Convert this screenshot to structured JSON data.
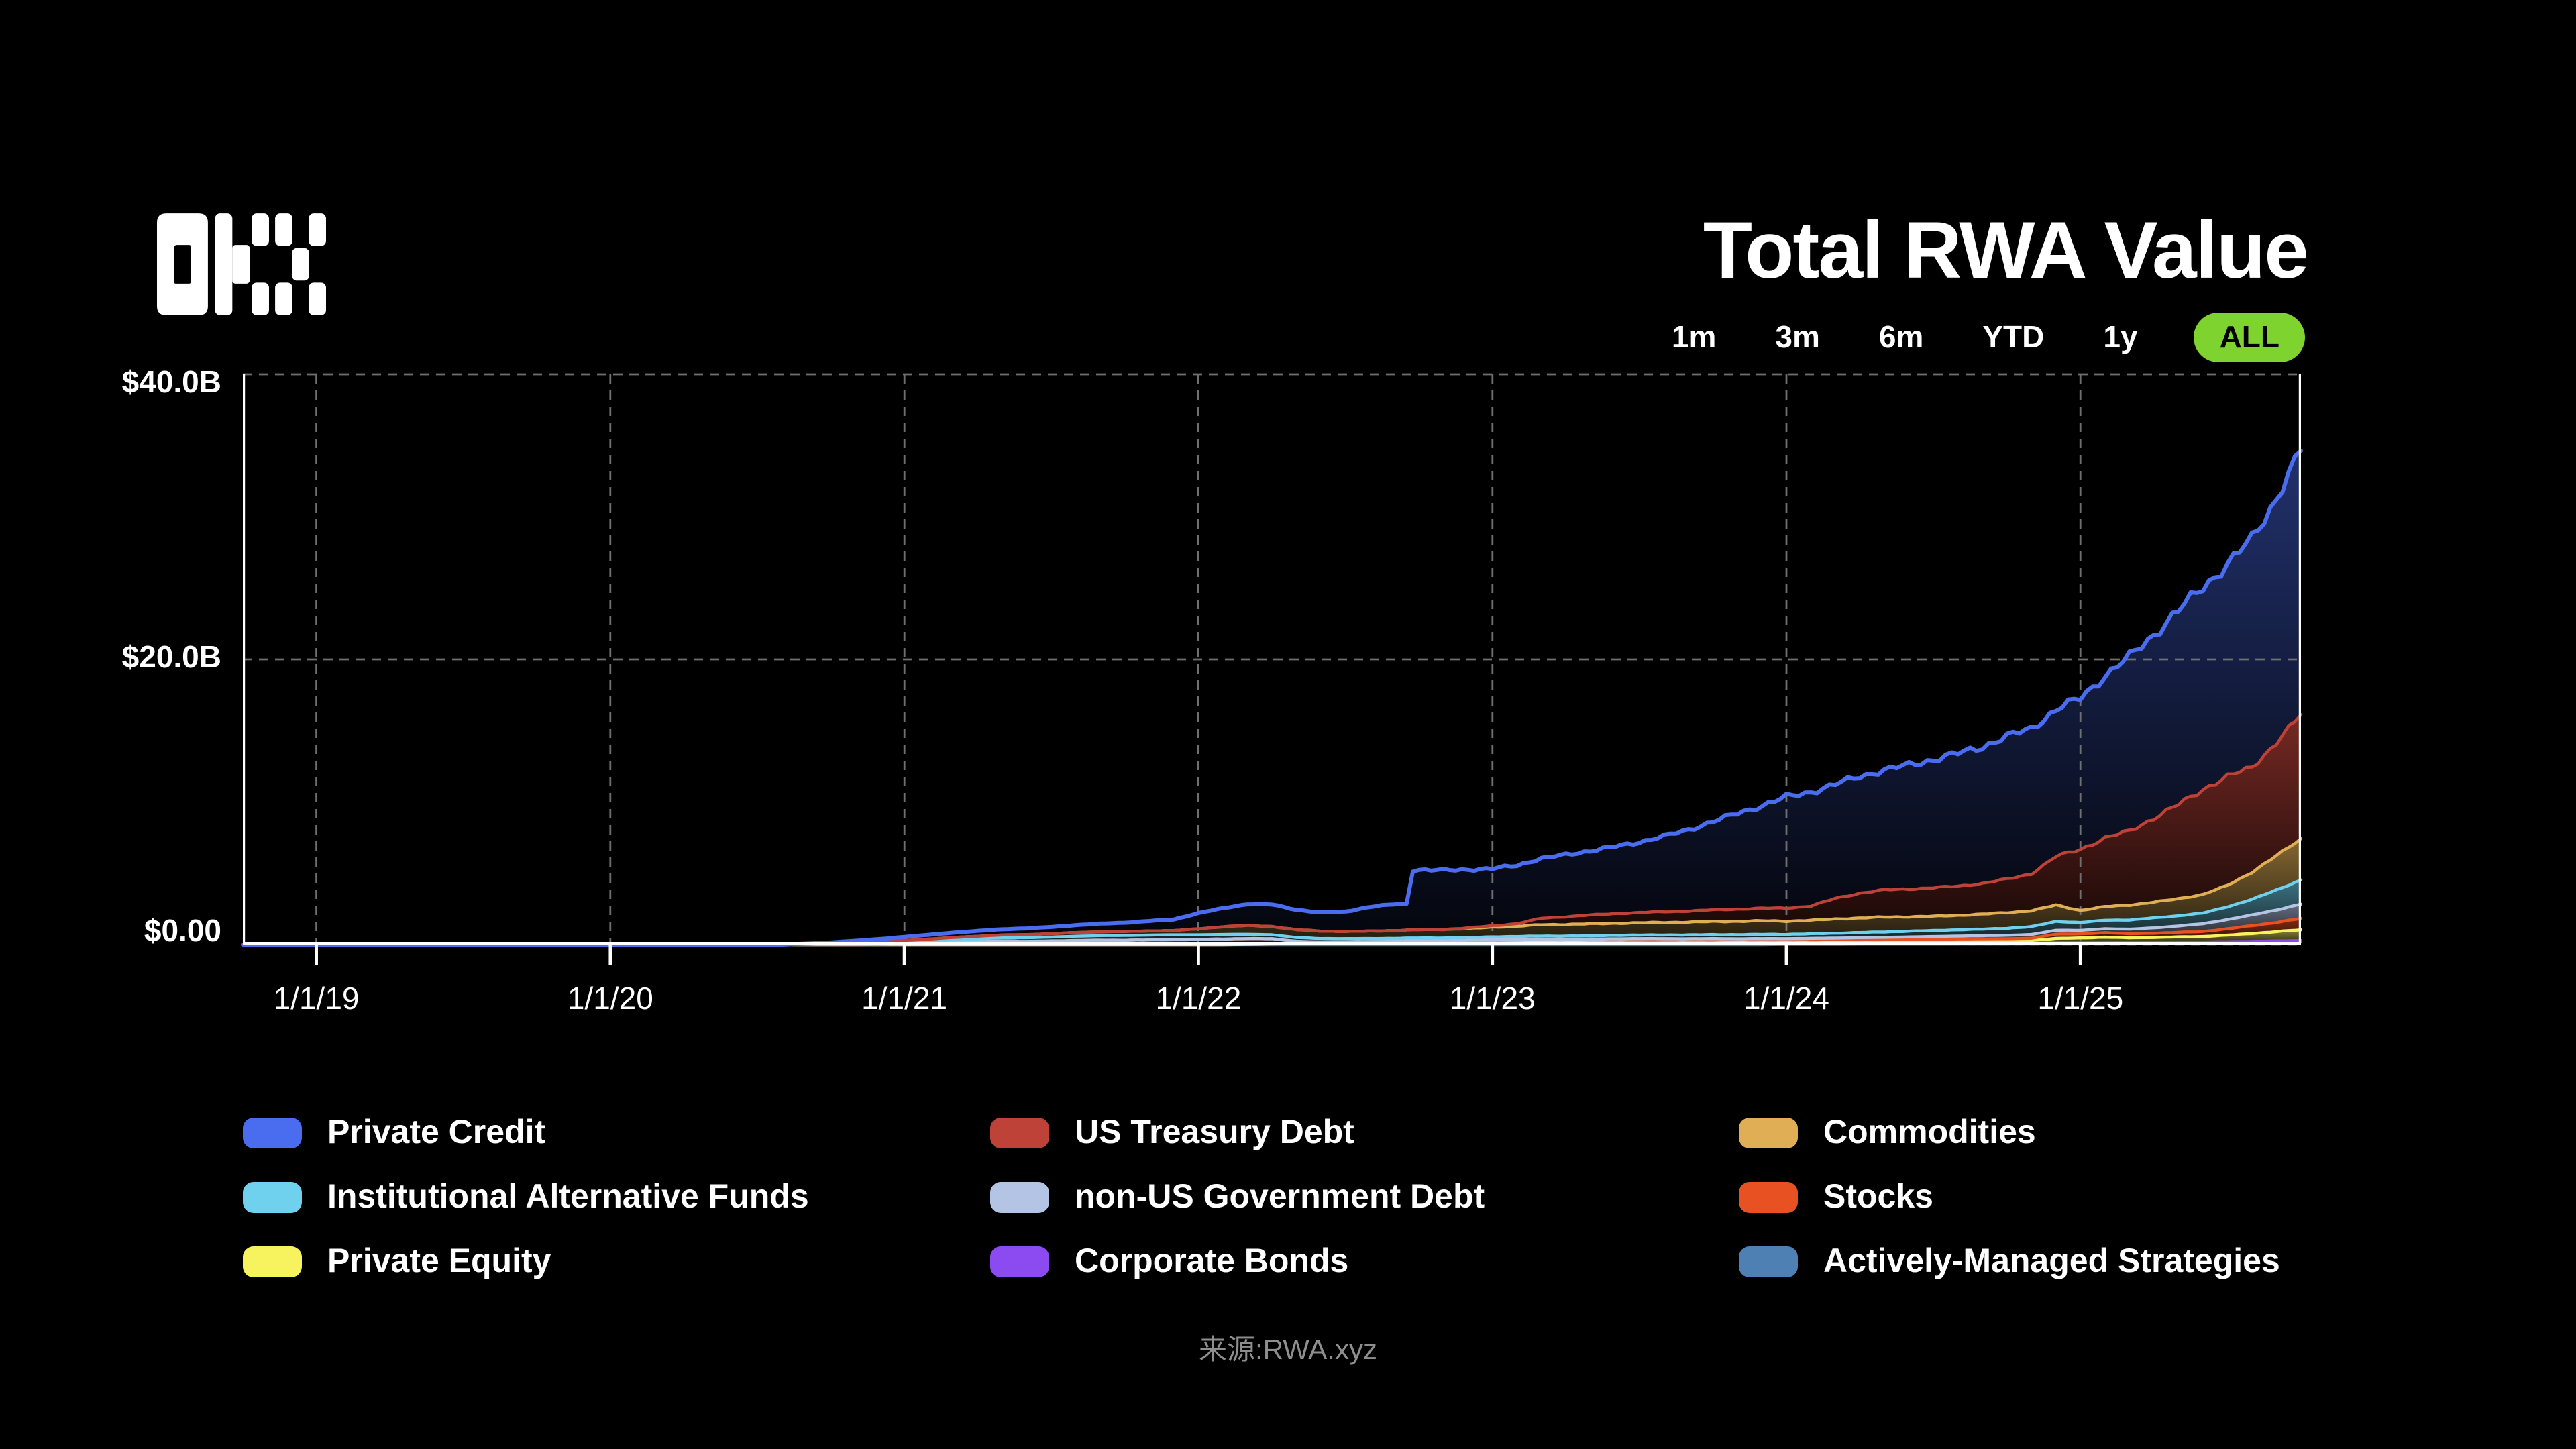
{
  "header": {
    "title": "Total RWA Value",
    "logo_name": "okx-logo"
  },
  "time_filters": {
    "options": [
      "1m",
      "3m",
      "6m",
      "YTD",
      "1y",
      "ALL"
    ],
    "active": "ALL"
  },
  "colors": {
    "accent_green": "#7ED32F",
    "grid": "#6f6f6f",
    "axis": "#ffffff",
    "text": "#ffffff",
    "muted_text": "#8e8e8e"
  },
  "source_note": "来源:RWA.xyz",
  "chart_data": {
    "type": "area",
    "stacked": true,
    "title": "Total RWA Value",
    "grid": true,
    "legend_position": "bottom",
    "ylim": [
      0,
      40
    ],
    "y_ticks": [
      "$40.0B",
      "$20.0B",
      "$0.00"
    ],
    "y_tick_values": [
      40,
      20,
      0
    ],
    "x_ticks": [
      "1/1/19",
      "1/1/20",
      "1/1/21",
      "1/1/22",
      "1/1/23",
      "1/1/24",
      "1/1/25"
    ],
    "x_tick_years": [
      2019,
      2020,
      2021,
      2022,
      2023,
      2024,
      2025
    ],
    "x_range": [
      2018.75,
      2025.75
    ],
    "start": {
      "year": 2018,
      "month": 10,
      "interval": "monthly"
    },
    "unit": "USD billions",
    "series": [
      {
        "id": "actively-managed-strategies",
        "name": "Actively-Managed Strategies",
        "color": "#4E80B4",
        "values": [
          0,
          0,
          0,
          0,
          0,
          0,
          0,
          0,
          0,
          0,
          0,
          0,
          0,
          0,
          0,
          0,
          0,
          0,
          0,
          0,
          0,
          0,
          0,
          0,
          0,
          0,
          0,
          0,
          0,
          0,
          0,
          0,
          0,
          0,
          0,
          0,
          0,
          0,
          0,
          0,
          0,
          0,
          0,
          0,
          0,
          0,
          0,
          0,
          0,
          0,
          0,
          0,
          0,
          0,
          0,
          0,
          0,
          0,
          0,
          0,
          0,
          0,
          0,
          0.02,
          0.02,
          0.02,
          0.03,
          0.03,
          0.03,
          0.03,
          0.04,
          0.04,
          0.04,
          0.05,
          0.05,
          0.05,
          0.06,
          0.07,
          0.08,
          0.09,
          0.1,
          0.12,
          0.14,
          0.17,
          0.2
        ]
      },
      {
        "id": "corporate-bonds",
        "name": "Corporate Bonds",
        "color": "#8B4BF0",
        "values": [
          0,
          0,
          0,
          0,
          0,
          0,
          0,
          0,
          0,
          0,
          0,
          0,
          0,
          0,
          0,
          0,
          0,
          0,
          0,
          0,
          0,
          0,
          0,
          0,
          0,
          0,
          0,
          0,
          0,
          0,
          0,
          0,
          0,
          0,
          0,
          0,
          0,
          0,
          0,
          0,
          0,
          0.02,
          0.05,
          0.08,
          0.1,
          0.12,
          0.14,
          0.15,
          0.17,
          0.18,
          0.2,
          0.22,
          0.23,
          0.24,
          0.24,
          0.25,
          0.25,
          0.26,
          0.26,
          0.25,
          0.25,
          0.24,
          0.24,
          0.22,
          0.21,
          0.2,
          0.19,
          0.18,
          0.17,
          0.16,
          0.15,
          0.14,
          0.13,
          0.12,
          0.12,
          0.11,
          0.1,
          0.1,
          0.09,
          0.09,
          0.08,
          0.08,
          0.08,
          0.08,
          0.08
        ]
      },
      {
        "id": "private-equity",
        "name": "Private Equity",
        "color": "#F7F35E",
        "values": [
          0,
          0,
          0,
          0,
          0,
          0,
          0,
          0,
          0,
          0,
          0,
          0,
          0,
          0,
          0,
          0,
          0,
          0,
          0,
          0,
          0,
          0,
          0,
          0,
          0,
          0,
          0,
          0,
          0,
          0,
          0,
          0,
          0,
          0,
          0,
          0,
          0,
          0,
          0,
          0,
          0,
          0,
          0,
          0,
          0,
          0,
          0,
          0.02,
          0.03,
          0.03,
          0.04,
          0.05,
          0.05,
          0.05,
          0.05,
          0.05,
          0.06,
          0.06,
          0.06,
          0.06,
          0.06,
          0.06,
          0.06,
          0.06,
          0.07,
          0.07,
          0.08,
          0.08,
          0.08,
          0.09,
          0.09,
          0.1,
          0.1,
          0.12,
          0.25,
          0.3,
          0.35,
          0.3,
          0.32,
          0.35,
          0.38,
          0.45,
          0.55,
          0.65,
          0.75
        ]
      },
      {
        "id": "stocks",
        "name": "Stocks",
        "color": "#E85122",
        "values": [
          0,
          0,
          0,
          0,
          0,
          0,
          0,
          0,
          0,
          0,
          0,
          0,
          0,
          0,
          0,
          0,
          0,
          0,
          0,
          0,
          0,
          0,
          0,
          0,
          0,
          0,
          0.02,
          0.05,
          0.1,
          0.15,
          0.2,
          0.25,
          0.22,
          0.25,
          0.28,
          0.3,
          0.3,
          0.32,
          0.33,
          0.35,
          0.38,
          0.4,
          0.35,
          0.15,
          0.08,
          0.07,
          0.07,
          0.06,
          0.06,
          0.05,
          0.05,
          0.05,
          0.05,
          0.05,
          0.05,
          0.05,
          0.05,
          0.05,
          0.05,
          0.05,
          0.05,
          0.05,
          0.06,
          0.06,
          0.07,
          0.08,
          0.08,
          0.09,
          0.1,
          0.1,
          0.11,
          0.12,
          0.13,
          0.15,
          0.3,
          0.28,
          0.32,
          0.28,
          0.3,
          0.32,
          0.35,
          0.45,
          0.55,
          0.65,
          0.8
        ]
      },
      {
        "id": "non-us-government-debt",
        "name": "non-US Government Debt",
        "color": "#B4C4E4",
        "values": [
          0,
          0,
          0,
          0,
          0,
          0,
          0,
          0,
          0,
          0,
          0,
          0,
          0,
          0,
          0,
          0,
          0,
          0,
          0,
          0,
          0,
          0,
          0,
          0,
          0,
          0,
          0,
          0,
          0,
          0,
          0,
          0,
          0,
          0,
          0,
          0,
          0,
          0,
          0,
          0,
          0,
          0,
          0,
          0,
          0,
          0,
          0,
          0,
          0,
          0,
          0,
          0.02,
          0.02,
          0.03,
          0.03,
          0.03,
          0.04,
          0.04,
          0.04,
          0.04,
          0.05,
          0.05,
          0.05,
          0.05,
          0.06,
          0.08,
          0.1,
          0.12,
          0.15,
          0.18,
          0.2,
          0.22,
          0.24,
          0.26,
          0.28,
          0.25,
          0.28,
          0.32,
          0.38,
          0.45,
          0.55,
          0.65,
          0.75,
          0.88,
          1.0
        ]
      },
      {
        "id": "institutional-alternative-funds",
        "name": "Institutional Alternative Funds",
        "color": "#6FD1EE",
        "values": [
          0,
          0,
          0,
          0,
          0,
          0,
          0,
          0,
          0,
          0,
          0,
          0,
          0,
          0,
          0,
          0,
          0,
          0,
          0,
          0,
          0,
          0,
          0,
          0.02,
          0.05,
          0.08,
          0.1,
          0.13,
          0.15,
          0.18,
          0.2,
          0.22,
          0.25,
          0.27,
          0.3,
          0.32,
          0.33,
          0.34,
          0.35,
          0.33,
          0.32,
          0.3,
          0.28,
          0.26,
          0.24,
          0.22,
          0.21,
          0.2,
          0.2,
          0.2,
          0.2,
          0.2,
          0.21,
          0.22,
          0.22,
          0.23,
          0.24,
          0.25,
          0.26,
          0.27,
          0.28,
          0.29,
          0.3,
          0.3,
          0.32,
          0.34,
          0.36,
          0.38,
          0.4,
          0.42,
          0.44,
          0.46,
          0.5,
          0.55,
          0.62,
          0.55,
          0.6,
          0.65,
          0.7,
          0.72,
          0.75,
          0.9,
          1.1,
          1.4,
          1.7
        ]
      },
      {
        "id": "commodities",
        "name": "Commodities",
        "color": "#DFAE55",
        "values": [
          0,
          0,
          0,
          0,
          0,
          0,
          0,
          0,
          0,
          0,
          0,
          0,
          0,
          0,
          0,
          0,
          0,
          0,
          0,
          0,
          0,
          0,
          0,
          0.02,
          0.04,
          0.06,
          0.08,
          0.1,
          0.13,
          0.16,
          0.18,
          0.2,
          0.22,
          0.24,
          0.26,
          0.27,
          0.28,
          0.29,
          0.3,
          0.42,
          0.55,
          0.62,
          0.58,
          0.55,
          0.52,
          0.5,
          0.52,
          0.55,
          0.58,
          0.6,
          0.62,
          0.68,
          0.72,
          0.8,
          0.82,
          0.84,
          0.85,
          0.86,
          0.88,
          0.9,
          0.92,
          0.94,
          0.95,
          0.93,
          0.95,
          1.0,
          1.02,
          1.05,
          1.02,
          1.0,
          1.02,
          1.05,
          1.1,
          1.12,
          1.15,
          0.85,
          0.95,
          1.05,
          1.1,
          1.2,
          1.3,
          1.5,
          1.9,
          2.4,
          2.9
        ]
      },
      {
        "id": "us-treasury-debt",
        "name": "US Treasury Debt",
        "color": "#BE4238",
        "values": [
          0,
          0,
          0,
          0,
          0,
          0,
          0,
          0,
          0,
          0,
          0,
          0,
          0,
          0,
          0,
          0,
          0,
          0,
          0,
          0,
          0,
          0,
          0,
          0,
          0,
          0,
          0,
          0,
          0,
          0,
          0,
          0,
          0,
          0,
          0,
          0,
          0,
          0,
          0,
          0,
          0,
          0,
          0,
          0,
          0,
          0,
          0,
          0,
          0,
          0,
          0.05,
          0.1,
          0.18,
          0.45,
          0.55,
          0.62,
          0.68,
          0.72,
          0.75,
          0.78,
          0.82,
          0.86,
          0.88,
          0.92,
          1.0,
          1.45,
          1.75,
          1.9,
          1.95,
          2.0,
          2.05,
          2.15,
          2.35,
          2.6,
          3.4,
          4.3,
          4.8,
          5.2,
          5.9,
          6.6,
          7.4,
          7.6,
          7.4,
          7.9,
          8.7
        ]
      },
      {
        "id": "private-credit",
        "name": "Private Credit",
        "color": "#4A6CEF",
        "values": [
          0,
          0,
          0,
          0,
          0,
          0,
          0,
          0,
          0,
          0,
          0,
          0,
          0,
          0,
          0,
          0,
          0,
          0,
          0,
          0,
          0,
          0,
          0,
          0.03,
          0.06,
          0.12,
          0.18,
          0.25,
          0.3,
          0.34,
          0.37,
          0.4,
          0.44,
          0.47,
          0.52,
          0.57,
          0.62,
          0.7,
          0.78,
          1.1,
          1.3,
          1.5,
          1.55,
          1.4,
          1.3,
          1.4,
          1.7,
          1.85,
          4.2,
          4.15,
          4.1,
          4.0,
          4.1,
          4.2,
          4.35,
          4.5,
          4.7,
          4.95,
          5.3,
          5.7,
          6.2,
          6.7,
          7.2,
          7.8,
          8.0,
          8.0,
          8.2,
          8.4,
          8.7,
          9.0,
          9.3,
          9.6,
          10.0,
          10.2,
          10.3,
          10.6,
          11.4,
          12.2,
          12.9,
          13.6,
          14.2,
          14.9,
          16.0,
          17.2,
          18.5
        ]
      }
    ],
    "legend_columns": [
      [
        "private-credit",
        "institutional-alternative-funds",
        "private-equity"
      ],
      [
        "us-treasury-debt",
        "non-us-government-debt",
        "corporate-bonds"
      ],
      [
        "commodities",
        "stocks",
        "actively-managed-strategies"
      ]
    ]
  }
}
